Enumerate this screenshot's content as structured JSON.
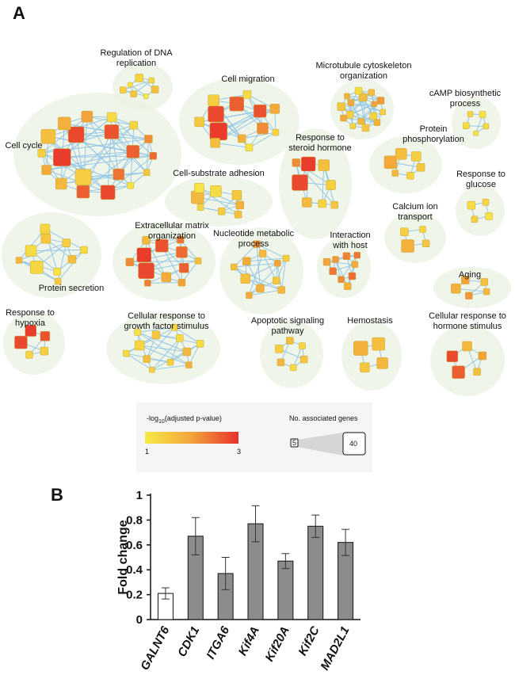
{
  "panels": {
    "a_label": "A",
    "b_label": "B"
  },
  "network": {
    "clusters": [
      {
        "id": "c01",
        "label": [
          "Regulation of DNA",
          "replication"
        ],
        "nodes": [
          {
            "s": 8,
            "v": 1.5
          },
          {
            "s": 6,
            "v": 1.1
          },
          {
            "s": 10,
            "v": 1.3
          },
          {
            "s": 7,
            "v": 1.2
          },
          {
            "s": 9,
            "v": 1.6
          },
          {
            "s": 6,
            "v": 1.0
          },
          {
            "s": 8,
            "v": 1.4
          }
        ]
      },
      {
        "id": "c02",
        "label": [
          "Cell migration"
        ],
        "nodes": [
          {
            "s": 22,
            "v": 2.9
          },
          {
            "s": 20,
            "v": 2.8
          },
          {
            "s": 18,
            "v": 2.6
          },
          {
            "s": 16,
            "v": 2.7
          },
          {
            "s": 14,
            "v": 2.2
          },
          {
            "s": 10,
            "v": 1.8
          },
          {
            "s": 12,
            "v": 1.5
          },
          {
            "s": 14,
            "v": 1.4
          },
          {
            "s": 10,
            "v": 1.2
          },
          {
            "s": 12,
            "v": 1.9
          },
          {
            "s": 8,
            "v": 1.3
          },
          {
            "s": 9,
            "v": 1.1
          },
          {
            "s": 12,
            "v": 1.6
          }
        ]
      },
      {
        "id": "c03",
        "label": [
          "Microtubule cytoskeleton",
          "organization"
        ],
        "nodes": [
          {
            "s": 9,
            "v": 1.4
          },
          {
            "s": 8,
            "v": 1.9
          },
          {
            "s": 10,
            "v": 1.6
          },
          {
            "s": 7,
            "v": 2.0
          },
          {
            "s": 9,
            "v": 1.3
          },
          {
            "s": 8,
            "v": 1.7
          },
          {
            "s": 10,
            "v": 1.5
          },
          {
            "s": 7,
            "v": 1.8
          },
          {
            "s": 9,
            "v": 1.2
          },
          {
            "s": 8,
            "v": 1.6
          },
          {
            "s": 9,
            "v": 2.1
          },
          {
            "s": 7,
            "v": 1.4
          },
          {
            "s": 8,
            "v": 1.8
          },
          {
            "s": 9,
            "v": 1.5
          },
          {
            "s": 7,
            "v": 1.3
          },
          {
            "s": 8,
            "v": 1.9
          }
        ]
      },
      {
        "id": "c04",
        "label": [
          "cAMP biosynthetic",
          "process"
        ],
        "nodes": [
          {
            "s": 8,
            "v": 1.2
          },
          {
            "s": 7,
            "v": 1.3
          },
          {
            "s": 8,
            "v": 1.1
          },
          {
            "s": 7,
            "v": 1.2
          },
          {
            "s": 6,
            "v": 1.1
          }
        ]
      },
      {
        "id": "c05",
        "label": [
          "Cell cycle"
        ],
        "nodes": [
          {
            "s": 22,
            "v": 2.9
          },
          {
            "s": 20,
            "v": 2.8
          },
          {
            "s": 18,
            "v": 2.7
          },
          {
            "s": 16,
            "v": 2.6
          },
          {
            "s": 14,
            "v": 2.4
          },
          {
            "s": 20,
            "v": 1.4
          },
          {
            "s": 18,
            "v": 1.6
          },
          {
            "s": 16,
            "v": 1.8
          },
          {
            "s": 14,
            "v": 2.0
          },
          {
            "s": 12,
            "v": 1.2
          },
          {
            "s": 10,
            "v": 1.3
          },
          {
            "s": 10,
            "v": 2.2
          },
          {
            "s": 9,
            "v": 2.5
          },
          {
            "s": 8,
            "v": 1.5
          },
          {
            "s": 8,
            "v": 1.1
          },
          {
            "s": 18,
            "v": 2.8
          },
          {
            "s": 16,
            "v": 2.6
          },
          {
            "s": 14,
            "v": 1.7
          },
          {
            "s": 12,
            "v": 1.9
          },
          {
            "s": 10,
            "v": 1.4
          }
        ]
      },
      {
        "id": "c06",
        "label": [
          "Response to",
          "steroid hormone"
        ],
        "nodes": [
          {
            "s": 20,
            "v": 2.8
          },
          {
            "s": 18,
            "v": 2.9
          },
          {
            "s": 14,
            "v": 1.6
          },
          {
            "s": 12,
            "v": 1.4
          },
          {
            "s": 10,
            "v": 1.3
          },
          {
            "s": 12,
            "v": 1.7
          },
          {
            "s": 10,
            "v": 2.2
          },
          {
            "s": 9,
            "v": 1.5
          }
        ]
      },
      {
        "id": "c07",
        "label": [
          "Protein",
          "phosphorylation"
        ],
        "nodes": [
          {
            "s": 16,
            "v": 1.9
          },
          {
            "s": 14,
            "v": 1.6
          },
          {
            "s": 12,
            "v": 1.4
          },
          {
            "s": 10,
            "v": 1.5
          },
          {
            "s": 9,
            "v": 1.3
          },
          {
            "s": 8,
            "v": 1.7
          }
        ]
      },
      {
        "id": "c08",
        "label": [
          "Cell-substrate adhesion"
        ],
        "nodes": [
          {
            "s": 16,
            "v": 1.7
          },
          {
            "s": 14,
            "v": 1.2
          },
          {
            "s": 12,
            "v": 1.5
          },
          {
            "s": 10,
            "v": 1.8
          },
          {
            "s": 9,
            "v": 1.4
          },
          {
            "s": 8,
            "v": 1.3
          },
          {
            "s": 12,
            "v": 1.1
          },
          {
            "s": 9,
            "v": 1.6
          }
        ]
      },
      {
        "id": "c09",
        "label": [
          "Response to",
          "glucose"
        ],
        "nodes": [
          {
            "s": 10,
            "v": 1.2
          },
          {
            "s": 8,
            "v": 1.3
          },
          {
            "s": 9,
            "v": 1.1
          },
          {
            "s": 8,
            "v": 1.4
          }
        ]
      },
      {
        "id": "c10",
        "label": [
          "Calcium ion",
          "transport"
        ],
        "nodes": [
          {
            "s": 16,
            "v": 1.8
          },
          {
            "s": 10,
            "v": 1.4
          },
          {
            "s": 8,
            "v": 1.3
          },
          {
            "s": 9,
            "v": 1.5
          }
        ]
      },
      {
        "id": "c11",
        "label": [
          "Protein secretion"
        ],
        "nodes": [
          {
            "s": 16,
            "v": 1.3
          },
          {
            "s": 14,
            "v": 1.2
          },
          {
            "s": 12,
            "v": 1.5
          },
          {
            "s": 10,
            "v": 1.4
          },
          {
            "s": 10,
            "v": 1.6
          },
          {
            "s": 9,
            "v": 1.1
          },
          {
            "s": 8,
            "v": 1.7
          },
          {
            "s": 12,
            "v": 1.3
          },
          {
            "s": 9,
            "v": 1.2
          },
          {
            "s": 8,
            "v": 1.5
          }
        ]
      },
      {
        "id": "c12",
        "label": [
          "Extracellular matrix",
          "organization"
        ],
        "nodes": [
          {
            "s": 20,
            "v": 2.8
          },
          {
            "s": 18,
            "v": 2.9
          },
          {
            "s": 16,
            "v": 2.7
          },
          {
            "s": 14,
            "v": 2.5
          },
          {
            "s": 12,
            "v": 2.6
          },
          {
            "s": 12,
            "v": 1.9
          },
          {
            "s": 10,
            "v": 2.2
          },
          {
            "s": 10,
            "v": 1.7
          },
          {
            "s": 9,
            "v": 2.4
          },
          {
            "s": 8,
            "v": 1.6
          },
          {
            "s": 9,
            "v": 2.0
          },
          {
            "s": 8,
            "v": 2.3
          }
        ]
      },
      {
        "id": "c13",
        "label": [
          "Nucleotide metabolic",
          "process"
        ],
        "nodes": [
          {
            "s": 12,
            "v": 1.6
          },
          {
            "s": 10,
            "v": 1.9
          },
          {
            "s": 9,
            "v": 1.7
          },
          {
            "s": 8,
            "v": 2.0
          },
          {
            "s": 9,
            "v": 1.5
          },
          {
            "s": 10,
            "v": 1.8
          },
          {
            "s": 8,
            "v": 1.6
          },
          {
            "s": 9,
            "v": 2.1
          },
          {
            "s": 8,
            "v": 1.4
          },
          {
            "s": 9,
            "v": 1.7
          },
          {
            "s": 8,
            "v": 1.9
          }
        ]
      },
      {
        "id": "c14",
        "label": [
          "Interaction",
          "with host"
        ],
        "nodes": [
          {
            "s": 9,
            "v": 2.4
          },
          {
            "s": 8,
            "v": 2.1
          },
          {
            "s": 9,
            "v": 2.3
          },
          {
            "s": 8,
            "v": 1.9
          },
          {
            "s": 9,
            "v": 2.5
          },
          {
            "s": 8,
            "v": 2.2
          },
          {
            "s": 9,
            "v": 2.0
          },
          {
            "s": 8,
            "v": 2.4
          },
          {
            "s": 9,
            "v": 1.8
          }
        ]
      },
      {
        "id": "c15",
        "label": [
          "Aging"
        ],
        "nodes": [
          {
            "s": 12,
            "v": 1.8
          },
          {
            "s": 10,
            "v": 2.0
          },
          {
            "s": 9,
            "v": 1.6
          },
          {
            "s": 8,
            "v": 1.7
          },
          {
            "s": 9,
            "v": 2.1
          }
        ]
      },
      {
        "id": "c16",
        "label": [
          "Response to",
          "hypoxia"
        ],
        "nodes": [
          {
            "s": 16,
            "v": 2.8
          },
          {
            "s": 14,
            "v": 2.9
          },
          {
            "s": 12,
            "v": 2.7
          },
          {
            "s": 10,
            "v": 1.4
          },
          {
            "s": 9,
            "v": 1.3
          }
        ]
      },
      {
        "id": "c17",
        "label": [
          "Cellular response to",
          "growth factor stimulus"
        ],
        "nodes": [
          {
            "s": 12,
            "v": 1.3
          },
          {
            "s": 10,
            "v": 1.5
          },
          {
            "s": 9,
            "v": 1.2
          },
          {
            "s": 10,
            "v": 1.7
          },
          {
            "s": 8,
            "v": 1.4
          },
          {
            "s": 9,
            "v": 1.6
          },
          {
            "s": 8,
            "v": 1.1
          },
          {
            "s": 8,
            "v": 1.3
          },
          {
            "s": 9,
            "v": 1.2
          },
          {
            "s": 8,
            "v": 1.8
          },
          {
            "s": 7,
            "v": 1.4
          },
          {
            "s": 8,
            "v": 1.2
          }
        ]
      },
      {
        "id": "c18",
        "label": [
          "Apoptotic signaling",
          "pathway"
        ],
        "nodes": [
          {
            "s": 10,
            "v": 1.4
          },
          {
            "s": 9,
            "v": 1.6
          },
          {
            "s": 8,
            "v": 1.3
          },
          {
            "s": 9,
            "v": 1.5
          },
          {
            "s": 8,
            "v": 1.2
          },
          {
            "s": 9,
            "v": 1.7
          }
        ]
      },
      {
        "id": "c19",
        "label": [
          "Hemostasis"
        ],
        "nodes": [
          {
            "s": 18,
            "v": 1.8
          },
          {
            "s": 16,
            "v": 1.6
          },
          {
            "s": 14,
            "v": 1.7
          },
          {
            "s": 12,
            "v": 1.5
          }
        ]
      },
      {
        "id": "c20",
        "label": [
          "Cellular response to",
          "hormone stimulus"
        ],
        "nodes": [
          {
            "s": 16,
            "v": 2.6
          },
          {
            "s": 14,
            "v": 2.8
          },
          {
            "s": 12,
            "v": 1.7
          },
          {
            "s": 10,
            "v": 2.0
          },
          {
            "s": 9,
            "v": 1.6
          }
        ]
      }
    ],
    "legend": {
      "color_title_base": "-log",
      "color_title_sub": "10",
      "color_title_rest": "(adjusted p-value)",
      "color_min": "1",
      "color_max": "3",
      "size_title": "No. associated genes",
      "size_min": "5",
      "size_max": "40"
    },
    "colors": {
      "low": "#f7ea46",
      "mid": "#f2a33a",
      "high": "#e8312c"
    }
  },
  "chart_data": {
    "type": "bar",
    "title": "",
    "xlabel": "",
    "ylabel": "Fold change",
    "ylim": [
      0,
      1
    ],
    "yticks": [
      "0",
      "0.2",
      "0.4",
      "0.6",
      "0.8",
      "1"
    ],
    "categories": [
      "GALNT6",
      "CDK1",
      "ITGA6",
      "Kif4A",
      "Kif20A",
      "Kif2C",
      "MAD2L1"
    ],
    "values": [
      0.21,
      0.67,
      0.37,
      0.77,
      0.47,
      0.75,
      0.62
    ],
    "errors": [
      0.045,
      0.15,
      0.13,
      0.145,
      0.06,
      0.09,
      0.105
    ],
    "bar_colors": [
      "#ffffff",
      "#8c8c8c",
      "#8c8c8c",
      "#8c8c8c",
      "#8c8c8c",
      "#8c8c8c",
      "#8c8c8c"
    ],
    "grid": false
  }
}
